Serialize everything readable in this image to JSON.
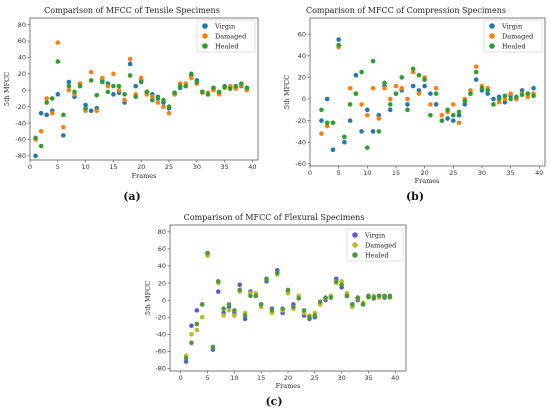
{
  "chart_data": [
    {
      "type": "scatter",
      "panel_label": "(a)",
      "title": "Comparison of MFCC of Tensile Specimens",
      "xlabel": "Frames",
      "ylabel": "5th MFCC",
      "xlim": [
        0,
        41
      ],
      "ylim": [
        -85,
        88
      ],
      "xticks": [
        0,
        5,
        10,
        15,
        20,
        25,
        30,
        35,
        40
      ],
      "yticks": [
        -80,
        -60,
        -40,
        -20,
        0,
        20,
        40,
        60,
        80
      ],
      "legend_position": "top-right",
      "series": [
        {
          "name": "Virgin",
          "color": "#1f77b4",
          "x": [
            1,
            2,
            3,
            4,
            5,
            6,
            7,
            8,
            9,
            10,
            11,
            12,
            13,
            14,
            15,
            16,
            17,
            18,
            19,
            20,
            21,
            22,
            23,
            24,
            25,
            26,
            27,
            28,
            29,
            30,
            31,
            32,
            33,
            34,
            35,
            36,
            37,
            38,
            39
          ],
          "y": [
            -80,
            -28,
            -30,
            -25,
            -5,
            -55,
            10,
            -8,
            8,
            -18,
            -25,
            -22,
            12,
            8,
            -5,
            -3,
            -15,
            32,
            5,
            12,
            -2,
            -5,
            -10,
            -15,
            -22,
            -5,
            3,
            5,
            18,
            12,
            -2,
            -5,
            2,
            -3,
            5,
            4,
            3,
            5,
            2
          ]
        },
        {
          "name": "Damaged",
          "color": "#ff7f0e",
          "x": [
            1,
            2,
            3,
            4,
            5,
            6,
            7,
            8,
            9,
            10,
            11,
            12,
            13,
            14,
            15,
            16,
            17,
            18,
            19,
            20,
            21,
            22,
            23,
            24,
            25,
            26,
            27,
            28,
            29,
            30,
            31,
            32,
            33,
            34,
            35,
            36,
            37,
            38,
            39
          ],
          "y": [
            -60,
            -50,
            -10,
            -28,
            58,
            -45,
            0,
            -5,
            8,
            -25,
            22,
            -25,
            15,
            5,
            20,
            0,
            -12,
            38,
            -5,
            15,
            -5,
            -8,
            -15,
            -20,
            -28,
            -5,
            8,
            8,
            15,
            8,
            -3,
            -3,
            0,
            -5,
            3,
            5,
            2,
            6,
            0
          ]
        },
        {
          "name": "Healed",
          "color": "#2ca02c",
          "x": [
            1,
            2,
            3,
            4,
            5,
            6,
            7,
            8,
            9,
            10,
            11,
            12,
            13,
            14,
            15,
            16,
            17,
            18,
            19,
            20,
            21,
            22,
            23,
            24,
            25,
            26,
            27,
            28,
            29,
            30,
            31,
            32,
            33,
            34,
            35,
            36,
            37,
            38,
            39
          ],
          "y": [
            -58,
            -68,
            -15,
            -10,
            35,
            -30,
            5,
            -2,
            5,
            -22,
            12,
            -6,
            10,
            -2,
            5,
            5,
            -5,
            18,
            -8,
            10,
            -2,
            -12,
            -8,
            -12,
            -20,
            -3,
            5,
            5,
            20,
            10,
            -2,
            -5,
            3,
            -2,
            4,
            2,
            5,
            8,
            3
          ]
        }
      ]
    },
    {
      "type": "scatter",
      "panel_label": "(b)",
      "title": "Comparison of MFCC of Compression Specimens",
      "xlabel": "Frames",
      "ylabel": "5th MFCC",
      "xlim": [
        0,
        41
      ],
      "ylim": [
        -62,
        75
      ],
      "xticks": [
        0,
        5,
        10,
        15,
        20,
        25,
        30,
        35,
        40
      ],
      "yticks": [
        -60,
        -40,
        -20,
        0,
        20,
        40,
        60
      ],
      "legend_position": "top-right",
      "series": [
        {
          "name": "Virgin",
          "color": "#1f77b4",
          "x": [
            2,
            3,
            4,
            5,
            6,
            7,
            8,
            9,
            10,
            11,
            12,
            13,
            14,
            15,
            16,
            17,
            18,
            19,
            20,
            21,
            22,
            23,
            24,
            25,
            26,
            27,
            28,
            29,
            30,
            31,
            32,
            33,
            34,
            35,
            36,
            37,
            38,
            39
          ],
          "y": [
            -20,
            0,
            -47,
            55,
            -40,
            -20,
            22,
            -30,
            -10,
            -30,
            -15,
            12,
            -10,
            5,
            8,
            -5,
            12,
            8,
            12,
            5,
            -5,
            -20,
            -18,
            -20,
            -15,
            -5,
            5,
            18,
            8,
            5,
            0,
            2,
            -3,
            3,
            0,
            8,
            5,
            10
          ]
        },
        {
          "name": "Damaged",
          "color": "#ff7f0e",
          "x": [
            2,
            3,
            4,
            5,
            6,
            7,
            8,
            9,
            10,
            11,
            12,
            13,
            14,
            15,
            16,
            17,
            18,
            19,
            20,
            21,
            22,
            23,
            24,
            25,
            26,
            27,
            28,
            29,
            30,
            31,
            32,
            33,
            34,
            35,
            36,
            37,
            38,
            39
          ],
          "y": [
            -32,
            -25,
            -22,
            48,
            -35,
            10,
            5,
            -5,
            -15,
            10,
            -18,
            10,
            0,
            12,
            10,
            0,
            25,
            5,
            20,
            -5,
            10,
            -15,
            -12,
            -5,
            -22,
            0,
            8,
            30,
            12,
            10,
            -5,
            -3,
            0,
            5,
            0,
            5,
            2,
            5
          ]
        },
        {
          "name": "Healed",
          "color": "#2ca02c",
          "x": [
            2,
            3,
            4,
            5,
            6,
            7,
            8,
            9,
            10,
            11,
            12,
            13,
            14,
            15,
            16,
            17,
            18,
            19,
            20,
            21,
            22,
            23,
            24,
            25,
            26,
            27,
            28,
            29,
            30,
            31,
            32,
            33,
            34,
            35,
            36,
            37,
            38,
            39
          ],
          "y": [
            -10,
            -22,
            -22,
            50,
            -35,
            -5,
            5,
            25,
            -45,
            35,
            -30,
            15,
            -5,
            5,
            20,
            -10,
            28,
            22,
            18,
            -15,
            5,
            -20,
            -10,
            -15,
            -12,
            -2,
            5,
            25,
            10,
            8,
            -5,
            0,
            3,
            0,
            2,
            4,
            5,
            3
          ]
        }
      ]
    },
    {
      "type": "scatter",
      "panel_label": "(c)",
      "title": "Comparison of MFCC of Flexural Specimens",
      "xlabel": "Frames",
      "ylabel": "5th MFCC",
      "xlim": [
        -2,
        42
      ],
      "ylim": [
        -83,
        88
      ],
      "xticks": [
        0,
        5,
        10,
        15,
        20,
        25,
        30,
        35,
        40
      ],
      "yticks": [
        -80,
        -60,
        -40,
        -20,
        0,
        20,
        40,
        60,
        80
      ],
      "legend_position": "top-right",
      "series": [
        {
          "name": "Virgin",
          "color": "#5b5bc9",
          "x": [
            1,
            2,
            3,
            4,
            5,
            6,
            7,
            8,
            9,
            10,
            11,
            12,
            13,
            14,
            15,
            16,
            17,
            18,
            19,
            20,
            21,
            22,
            23,
            24,
            25,
            26,
            27,
            28,
            29,
            30,
            31,
            32,
            33,
            34,
            35,
            36,
            37,
            38,
            39
          ],
          "y": [
            -72,
            -30,
            -12,
            -5,
            55,
            -58,
            10,
            -15,
            -8,
            -15,
            18,
            -22,
            10,
            5,
            -5,
            22,
            -10,
            35,
            -15,
            10,
            -5,
            5,
            -18,
            -22,
            -20,
            -5,
            0,
            5,
            25,
            15,
            5,
            -5,
            0,
            -5,
            5,
            2,
            5,
            3,
            5
          ]
        },
        {
          "name": "Damaged",
          "color": "#bcbd22",
          "x": [
            1,
            2,
            3,
            4,
            5,
            6,
            7,
            8,
            9,
            10,
            11,
            12,
            13,
            14,
            15,
            16,
            17,
            18,
            19,
            20,
            21,
            22,
            23,
            24,
            25,
            26,
            27,
            28,
            29,
            30,
            31,
            32,
            33,
            34,
            35,
            36,
            37,
            38,
            39
          ],
          "y": [
            -65,
            -40,
            -35,
            -20,
            52,
            -55,
            20,
            -18,
            -12,
            -18,
            10,
            -15,
            8,
            8,
            -8,
            25,
            -15,
            30,
            -12,
            8,
            -10,
            5,
            -15,
            -18,
            -15,
            -5,
            2,
            5,
            20,
            22,
            8,
            -8,
            2,
            -3,
            3,
            5,
            3,
            5,
            3
          ]
        },
        {
          "name": "Healed",
          "color": "#4a9a3a",
          "x": [
            1,
            2,
            3,
            4,
            5,
            6,
            7,
            8,
            9,
            10,
            11,
            12,
            13,
            14,
            15,
            16,
            17,
            18,
            19,
            20,
            21,
            22,
            23,
            24,
            25,
            26,
            27,
            28,
            29,
            30,
            31,
            32,
            33,
            34,
            35,
            36,
            37,
            38,
            39
          ],
          "y": [
            -68,
            -50,
            -28,
            -5,
            55,
            -55,
            22,
            -10,
            -5,
            -12,
            12,
            -18,
            5,
            5,
            -5,
            25,
            -12,
            32,
            -10,
            12,
            -8,
            2,
            -12,
            -20,
            -18,
            -2,
            3,
            3,
            22,
            18,
            5,
            -5,
            3,
            -5,
            4,
            3,
            5,
            5,
            4
          ]
        }
      ]
    }
  ]
}
